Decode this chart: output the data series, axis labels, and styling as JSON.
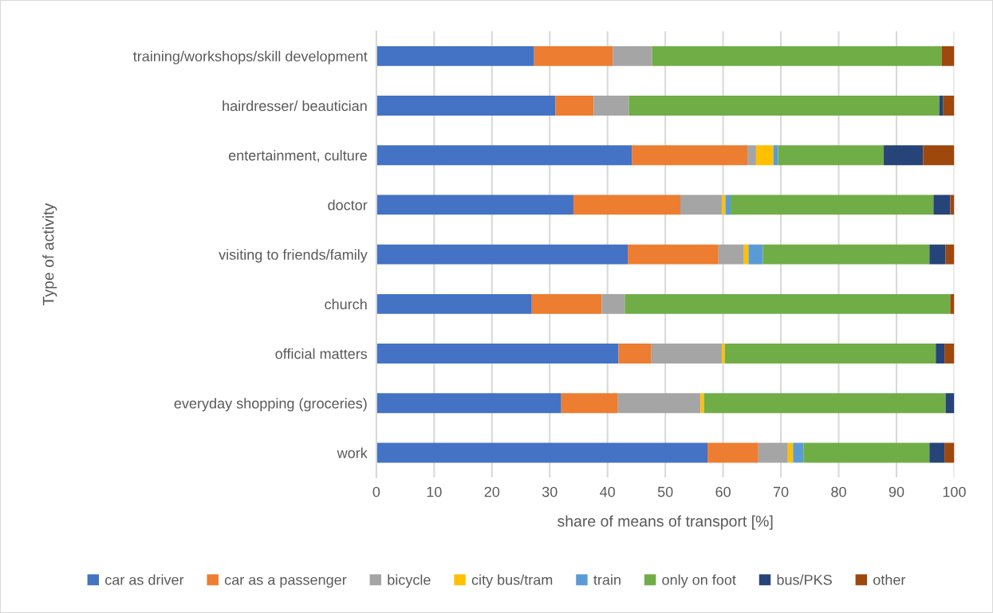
{
  "chart_data": {
    "type": "bar",
    "orientation": "horizontal",
    "stacked": true,
    "ylabel": "Type of activity",
    "xlabel": "share of means of transport [%]",
    "categories": [
      "training/workshops/skill development",
      "hairdresser/ beautician",
      "entertainment, culture",
      "doctor",
      "visiting to friends/family",
      "church",
      "official matters",
      "everyday shopping (groceries)",
      "work"
    ],
    "series": [
      {
        "name": "car as driver",
        "color": "#4472c4",
        "values": [
          27.3,
          31.0,
          44.2,
          34.1,
          43.5,
          26.9,
          41.9,
          32.0,
          57.3
        ]
      },
      {
        "name": "car as a passenger",
        "color": "#ed7d31",
        "values": [
          13.6,
          6.6,
          20.0,
          18.5,
          15.7,
          12.1,
          5.7,
          9.8,
          8.8
        ]
      },
      {
        "name": "bicycle",
        "color": "#a5a5a5",
        "values": [
          6.8,
          6.1,
          1.5,
          7.2,
          4.4,
          4.0,
          12.2,
          14.3,
          5.1
        ]
      },
      {
        "name": "city bus/tram",
        "color": "#ffc000",
        "values": [
          null,
          null,
          3.0,
          0.6,
          0.8,
          null,
          0.5,
          0.6,
          0.9
        ]
      },
      {
        "name": "train",
        "color": "#5b9bd5",
        "values": [
          null,
          null,
          0.8,
          0.9,
          2.5,
          null,
          null,
          null,
          1.8
        ]
      },
      {
        "name": "only on foot",
        "color": "#70ad47",
        "values": [
          50.1,
          53.7,
          18.3,
          35.1,
          28.8,
          56.3,
          36.5,
          41.8,
          21.8
        ]
      },
      {
        "name": "bus/PKS",
        "color": "#264478",
        "values": [
          null,
          0.7,
          6.8,
          2.9,
          2.8,
          null,
          1.5,
          1.5,
          2.6
        ]
      },
      {
        "name": "other",
        "color": "#9e480e",
        "values": [
          2.2,
          1.9,
          5.4,
          0.7,
          1.5,
          0.7,
          1.7,
          null,
          1.7
        ]
      }
    ],
    "xlim": [
      0,
      100
    ],
    "xticks": [
      0,
      10,
      20,
      30,
      40,
      50,
      60,
      70,
      80,
      90,
      100
    ],
    "grid": "x",
    "legend": "bottom"
  }
}
